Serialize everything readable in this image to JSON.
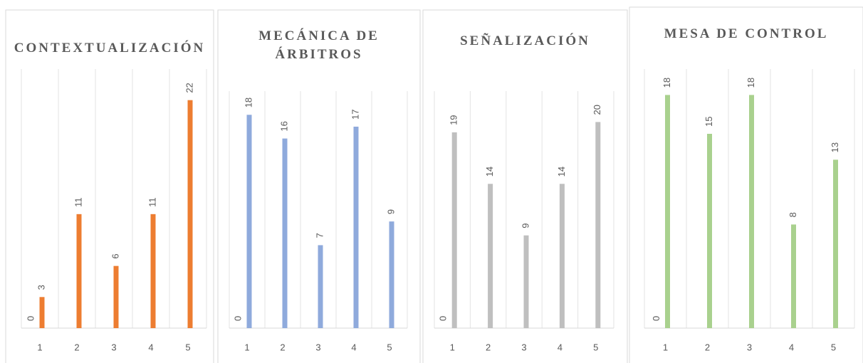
{
  "chart_data": [
    {
      "type": "bar",
      "title": "CONTEXTUALIZACIÓN",
      "categories": [
        "1",
        "2",
        "3",
        "4",
        "5"
      ],
      "series": [
        {
          "color": "#ed7d31",
          "values": [
            0,
            null,
            null,
            null,
            null
          ]
        },
        {
          "color": "#ed7d31",
          "values": [
            3,
            11,
            6,
            11,
            22
          ]
        }
      ],
      "ylim": [
        0,
        25
      ]
    },
    {
      "type": "bar",
      "title": "MECÁNICA DE ÁRBITROS",
      "categories": [
        "1",
        "2",
        "3",
        "4",
        "5"
      ],
      "series": [
        {
          "color": "#8faadc",
          "values": [
            0,
            null,
            null,
            null,
            null
          ]
        },
        {
          "color": "#8faadc",
          "values": [
            18,
            16,
            7,
            17,
            9
          ]
        }
      ],
      "ylim": [
        0,
        20
      ]
    },
    {
      "type": "bar",
      "title": "SEÑALIZACIÓN",
      "categories": [
        "1",
        "2",
        "3",
        "4",
        "5"
      ],
      "series": [
        {
          "color": "#bfbfbf",
          "values": [
            0,
            null,
            null,
            null,
            null
          ]
        },
        {
          "color": "#bfbfbf",
          "values": [
            19,
            14,
            9,
            14,
            20
          ]
        }
      ],
      "ylim": [
        0,
        23
      ]
    },
    {
      "type": "bar",
      "title": "MESA DE CONTROL",
      "categories": [
        "1",
        "2",
        "3",
        "4",
        "5"
      ],
      "series": [
        {
          "color": "#a9d18e",
          "values": [
            0,
            null,
            null,
            null,
            null
          ]
        },
        {
          "color": "#a9d18e",
          "values": [
            18,
            15,
            18,
            8,
            13
          ]
        }
      ],
      "ylim": [
        0,
        20
      ]
    }
  ]
}
